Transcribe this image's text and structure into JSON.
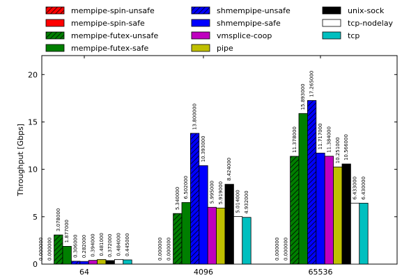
{
  "chart_data": {
    "type": "bar",
    "title": "",
    "xlabel": "",
    "ylabel": "Throughput [Gbps]",
    "categories": [
      "64",
      "4096",
      "65536"
    ],
    "ylim": [
      0,
      22
    ],
    "yticks": [
      0,
      5,
      10,
      15,
      20
    ],
    "grid": false,
    "legend_position": "top",
    "series": [
      {
        "name": "mempipe-spin-unsafe",
        "color": "#ff0000",
        "hatched": true,
        "values": [
          0,
          0,
          0
        ],
        "labels": [
          "0.000000",
          "0.000000",
          "0.000000"
        ]
      },
      {
        "name": "mempipe-spin-safe",
        "color": "#ff0000",
        "hatched": false,
        "values": [
          0,
          0,
          0
        ],
        "labels": [
          "0.000000",
          "0.000000",
          "0.000000"
        ]
      },
      {
        "name": "mempipe-futex-unsafe",
        "color": "#007f00",
        "hatched": true,
        "values": [
          3.078,
          5.34,
          11.378
        ],
        "labels": [
          "3.078000",
          "5.340000",
          "11.378000"
        ]
      },
      {
        "name": "mempipe-futex-safe",
        "color": "#007f00",
        "hatched": false,
        "values": [
          1.877,
          6.502,
          15.893
        ],
        "labels": [
          "1.877000",
          "6.502000",
          "15.893000"
        ]
      },
      {
        "name": "shmempipe-unsafe",
        "color": "#0000ff",
        "hatched": true,
        "values": [
          0.306,
          13.8,
          17.265
        ],
        "labels": [
          "0.306000",
          "13.800000",
          "17.265000"
        ]
      },
      {
        "name": "shmempipe-safe",
        "color": "#0000ff",
        "hatched": false,
        "values": [
          0.282,
          10.393,
          11.717
        ],
        "labels": [
          "0.282000",
          "10.393000",
          "11.717000"
        ]
      },
      {
        "name": "vmsplice-coop",
        "color": "#bf00bf",
        "hatched": false,
        "values": [
          0.394,
          5.995,
          11.384
        ],
        "labels": [
          "0.394000",
          "5.995000",
          "11.384000"
        ]
      },
      {
        "name": "pipe",
        "color": "#bfbf00",
        "hatched": false,
        "values": [
          0.481,
          5.919,
          10.251
        ],
        "labels": [
          "0.481000",
          "5.919000",
          "10.251000"
        ]
      },
      {
        "name": "unix-sock",
        "color": "#000000",
        "hatched": false,
        "values": [
          0.372,
          8.424,
          10.566
        ],
        "labels": [
          "0.372000",
          "8.424000",
          "10.566000"
        ]
      },
      {
        "name": "tcp-nodelay",
        "color": "#ffffff",
        "hatched": false,
        "values": [
          0.484,
          5.014,
          6.433
        ],
        "labels": [
          "0.484000",
          "5.014000",
          "6.433000"
        ]
      },
      {
        "name": "tcp",
        "color": "#00bfbf",
        "hatched": false,
        "values": [
          0.445,
          4.932,
          6.43
        ],
        "labels": [
          "0.445000",
          "4.932000",
          "6.430000"
        ]
      }
    ]
  }
}
